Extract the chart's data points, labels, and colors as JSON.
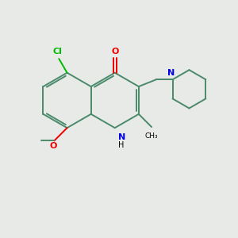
{
  "background_color": "#e8eae8",
  "bond_color": "#4a8a6a",
  "n_color": "#0000ee",
  "o_color": "#ee0000",
  "cl_color": "#00bb00",
  "text_color": "#000000",
  "line_width": 1.4,
  "figsize": [
    3.0,
    3.0
  ],
  "dpi": 100,
  "xlim": [
    0,
    10
  ],
  "ylim": [
    0,
    10
  ]
}
